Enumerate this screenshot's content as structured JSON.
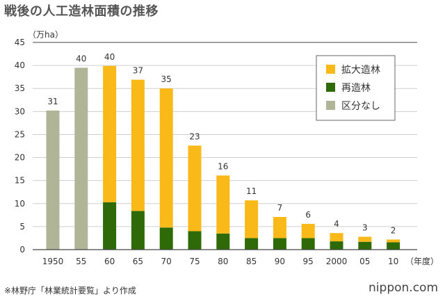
{
  "title": "戦後の人工造林面積の推移",
  "source": "※林野庁「林業統計要覧」より作成",
  "logo": "nippon.com",
  "chart_data": {
    "type": "bar",
    "stacked": true,
    "title": "戦後の人工造林面積の推移",
    "ylabel": "（万ha）",
    "xlabel": "（年度）",
    "ylim": [
      0,
      45
    ],
    "yticks": [
      0,
      5,
      10,
      15,
      20,
      25,
      30,
      35,
      40,
      45
    ],
    "categories": [
      "1950",
      "55",
      "60",
      "65",
      "70",
      "75",
      "80",
      "85",
      "90",
      "95",
      "2000",
      "05",
      "10"
    ],
    "totals": [
      31,
      40,
      40,
      37,
      35,
      23,
      16,
      11,
      7,
      6,
      4,
      3,
      2
    ],
    "series": [
      {
        "name": "区分なし",
        "color": "#b1b597",
        "values": [
          30.2,
          39.5,
          0,
          0,
          0,
          0,
          0,
          0,
          0,
          0,
          0,
          0,
          0
        ]
      },
      {
        "name": "再造林",
        "color": "#2f6a09",
        "values": [
          0,
          0,
          10.3,
          8.4,
          4.8,
          4.0,
          3.5,
          2.5,
          2.5,
          2.5,
          1.8,
          1.7,
          1.6
        ]
      },
      {
        "name": "拡大造林",
        "color": "#f9b918",
        "values": [
          0,
          0,
          29.6,
          28.5,
          30.2,
          18.6,
          12.6,
          8.2,
          4.6,
          3.1,
          1.8,
          1.1,
          0.6
        ]
      }
    ],
    "legend": [
      {
        "name": "拡大造林",
        "color": "#f9b918"
      },
      {
        "name": "再造林",
        "color": "#2f6a09"
      },
      {
        "name": "区分なし",
        "color": "#b1b597"
      }
    ],
    "legend_position": "top-right",
    "grid": true
  }
}
